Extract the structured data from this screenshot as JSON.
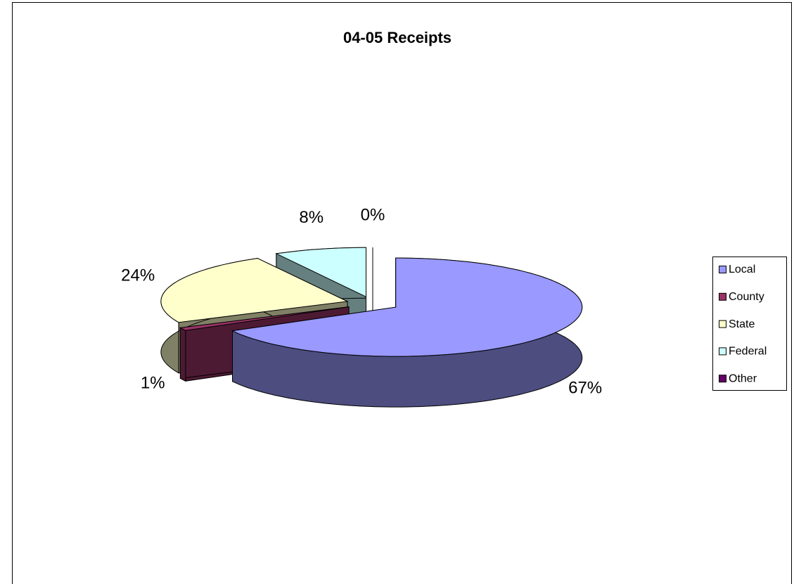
{
  "chart_data": {
    "type": "pie",
    "title": "04-05 Receipts",
    "categories": [
      "Local",
      "County",
      "State",
      "Federal",
      "Other"
    ],
    "values": [
      67,
      1,
      24,
      8,
      0
    ],
    "value_labels": [
      "67%",
      "1%",
      "24%",
      "8%",
      "0%"
    ],
    "colors": [
      "#9999ff",
      "#993366",
      "#ffffcc",
      "#ccffff",
      "#660066"
    ],
    "legend": "right"
  }
}
